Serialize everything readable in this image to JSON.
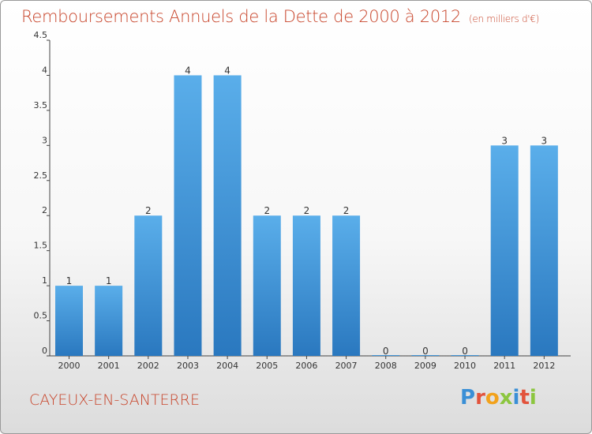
{
  "header": {
    "title": "Remboursements Annuels de la Dette de 2000 à 2012",
    "unit": "(en milliers d'€)"
  },
  "footer": {
    "commune": "CAYEUX-EN-SANTERRE",
    "logo_letters": [
      "P",
      "r",
      "o",
      "x",
      "i",
      "t",
      "i"
    ]
  },
  "colors": {
    "bar_top": "#5aaeea",
    "bar_bottom": "#2a78bf",
    "title": "#c8452b"
  },
  "chart_data": {
    "type": "bar",
    "title": "Remboursements Annuels de la Dette de 2000 à 2012",
    "xlabel": "",
    "ylabel": "",
    "categories": [
      "2000",
      "2001",
      "2002",
      "2003",
      "2004",
      "2005",
      "2006",
      "2007",
      "2008",
      "2009",
      "2010",
      "2011",
      "2012"
    ],
    "values": [
      1,
      1,
      2,
      4,
      4,
      2,
      2,
      2,
      0,
      0,
      0,
      3,
      3
    ],
    "data_labels": [
      "1",
      "1",
      "2",
      "4",
      "4",
      "2",
      "2",
      "2",
      "0",
      "0",
      "0",
      "3",
      "3"
    ],
    "ylim": [
      0,
      4.5
    ],
    "yticks": [
      0,
      0.5,
      1,
      1.5,
      2,
      2.5,
      3,
      3.5,
      4,
      4.5
    ],
    "ytick_labels": [
      "0",
      "0.5",
      "1",
      "1.5",
      "2",
      "2.5",
      "3",
      "3.5",
      "4",
      "4.5"
    ],
    "grid": false,
    "legend": "none"
  }
}
